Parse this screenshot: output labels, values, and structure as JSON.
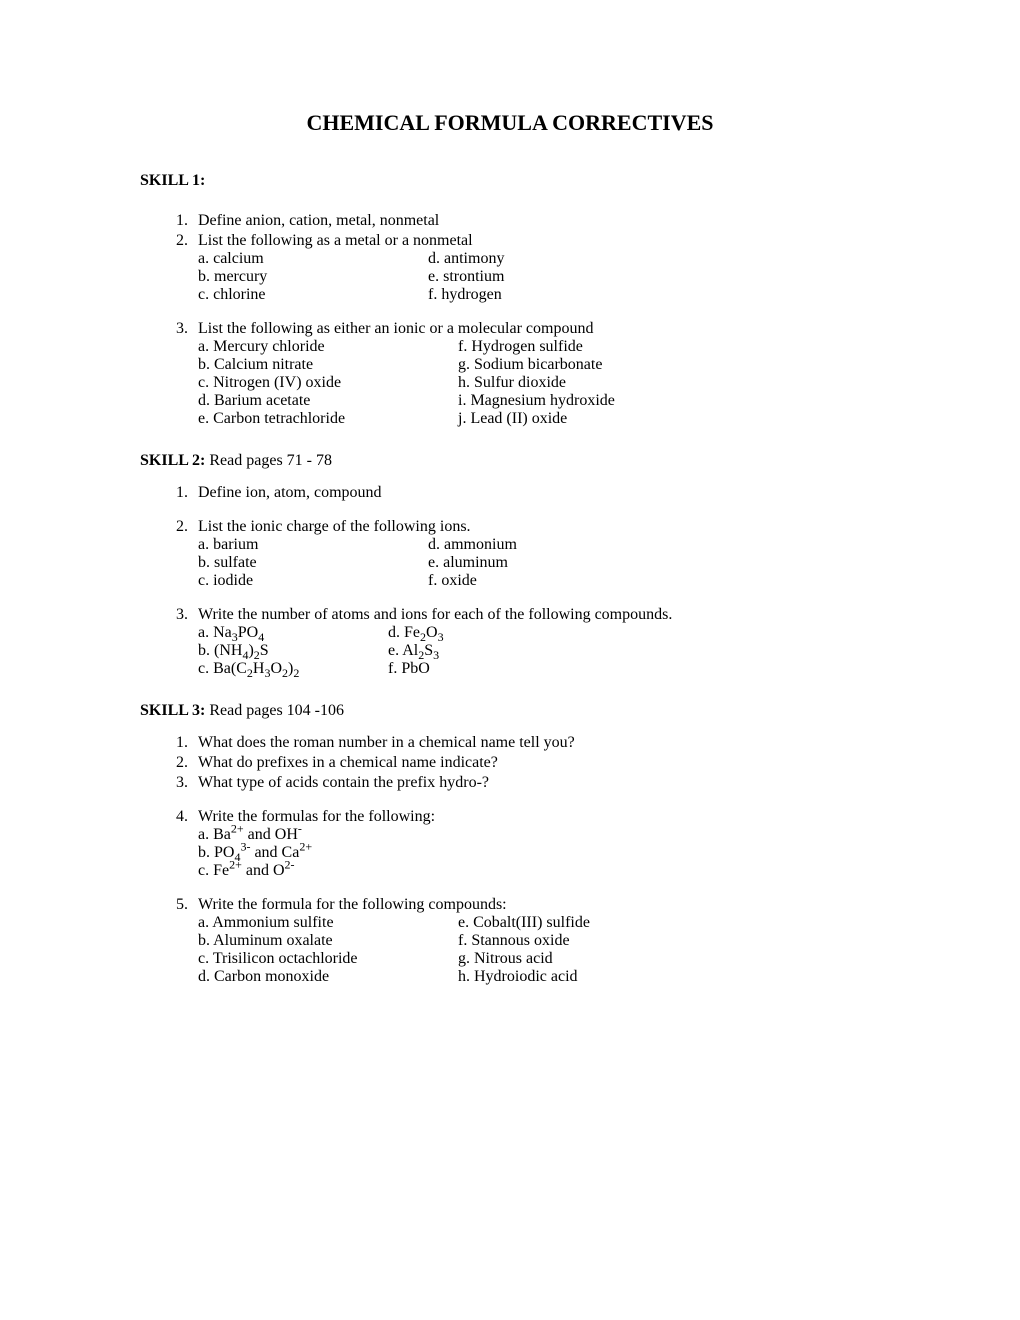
{
  "title": "CHEMICAL FORMULA CORRECTIVES",
  "skill1": {
    "label": "SKILL 1:",
    "q1": "Define anion, cation, metal, nonmetal",
    "q2": "List the following as a metal or a nonmetal",
    "q2_left": [
      "a. calcium",
      "b. mercury",
      "c. chlorine"
    ],
    "q2_right": [
      "d. antimony",
      "e. strontium",
      "f. hydrogen"
    ],
    "q3": "List the following as either an ionic or a molecular compound",
    "q3_left": [
      "a.  Mercury chloride",
      "b. Calcium nitrate",
      "c. Nitrogen (IV) oxide",
      "d. Barium acetate",
      "e. Carbon tetrachloride"
    ],
    "q3_right": [
      "f.  Hydrogen sulfide",
      "g.  Sodium bicarbonate",
      "h. Sulfur dioxide",
      "i. Magnesium hydroxide",
      "j. Lead (II) oxide"
    ]
  },
  "skill2": {
    "label": "SKILL 2:",
    "label_suffix": "  Read pages 71 - 78",
    "q1": "Define ion, atom, compound",
    "q2": "List the ionic charge of the following ions.",
    "q2_left": [
      "a.  barium",
      "b. sulfate",
      "c. iodide"
    ],
    "q2_right": [
      "d. ammonium",
      "e. aluminum",
      "f. oxide"
    ],
    "q3": "Write the number of atoms and ions for each of the following compounds.",
    "q3_left_a_pre": "a.  Na",
    "q3_left_a_sub1": "3",
    "q3_left_a_mid": "PO",
    "q3_left_a_sub2": "4",
    "q3_left_b_pre": "b.  (NH",
    "q3_left_b_sub1": "4",
    "q3_left_b_mid": ")",
    "q3_left_b_sub2": "2",
    "q3_left_b_post": "S",
    "q3_left_c_pre": "c.  Ba(C",
    "q3_left_c_sub1": "2",
    "q3_left_c_mid1": "H",
    "q3_left_c_sub2": "3",
    "q3_left_c_mid2": "O",
    "q3_left_c_sub3": "2",
    "q3_left_c_mid3": ")",
    "q3_left_c_sub4": "2",
    "q3_right_d_pre": "d.  Fe",
    "q3_right_d_sub1": "2",
    "q3_right_d_mid": "O",
    "q3_right_d_sub2": "3",
    "q3_right_e_pre": "e.  Al",
    "q3_right_e_sub1": "2",
    "q3_right_e_mid": "S",
    "q3_right_e_sub2": "3",
    "q3_right_f": "f.  PbO"
  },
  "skill3": {
    "label": "SKILL 3:",
    "label_suffix": "  Read pages 104 -106",
    "q1": "What does the roman number in a chemical name tell you?",
    "q2": "What do prefixes in a chemical name indicate?",
    "q3": "What type of acids contain the prefix hydro-?",
    "q4": "Write the formulas for the following:",
    "q4a_pre": "a.  Ba",
    "q4a_sup": "2+",
    "q4a_mid": "  and  OH",
    "q4a_sup2": "-",
    "q4b_pre": "b.  PO",
    "q4b_sub": "4",
    "q4b_sup": "3-",
    "q4b_mid": "  and  Ca",
    "q4b_sup2": "2+",
    "q4c_pre": "c.  Fe",
    "q4c_sup": "2+",
    "q4c_mid": "  and  O",
    "q4c_sup2": "2-",
    "q5": "Write the formula for the following compounds:",
    "q5_left": [
      "a.  Ammonium sulfite",
      "b.  Aluminum oxalate",
      "c.  Trisilicon octachloride",
      "d.  Carbon monoxide"
    ],
    "q5_right": [
      "e. Cobalt(III) sulfide",
      "f.  Stannous oxide",
      "g.  Nitrous acid",
      "h. Hydroiodic acid"
    ]
  }
}
